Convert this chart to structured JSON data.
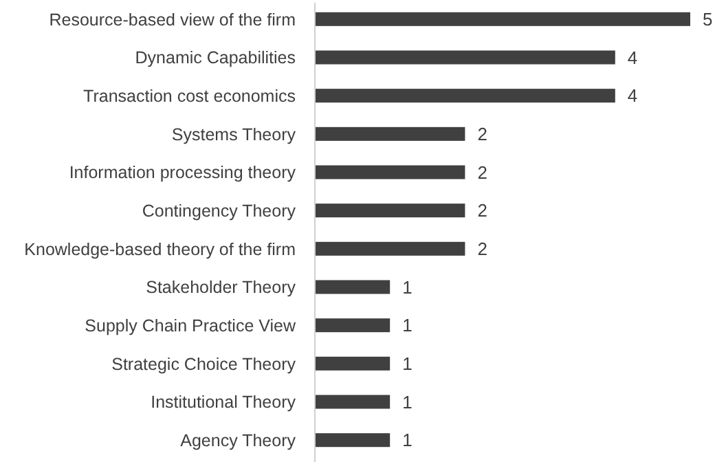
{
  "chart_data": {
    "type": "bar",
    "orientation": "horizontal",
    "categories": [
      "Resource-based view of the firm",
      "Dynamic Capabilities",
      "Transaction cost economics",
      "Systems Theory",
      "Information processing theory",
      "Contingency Theory",
      "Knowledge-based theory of the firm",
      "Stakeholder Theory",
      "Supply Chain Practice View",
      "Strategic Choice Theory",
      "Institutional Theory",
      "Agency Theory"
    ],
    "values": [
      5,
      4,
      4,
      2,
      2,
      2,
      2,
      1,
      1,
      1,
      1,
      1
    ],
    "color": "#404040",
    "data_labels": true
  }
}
